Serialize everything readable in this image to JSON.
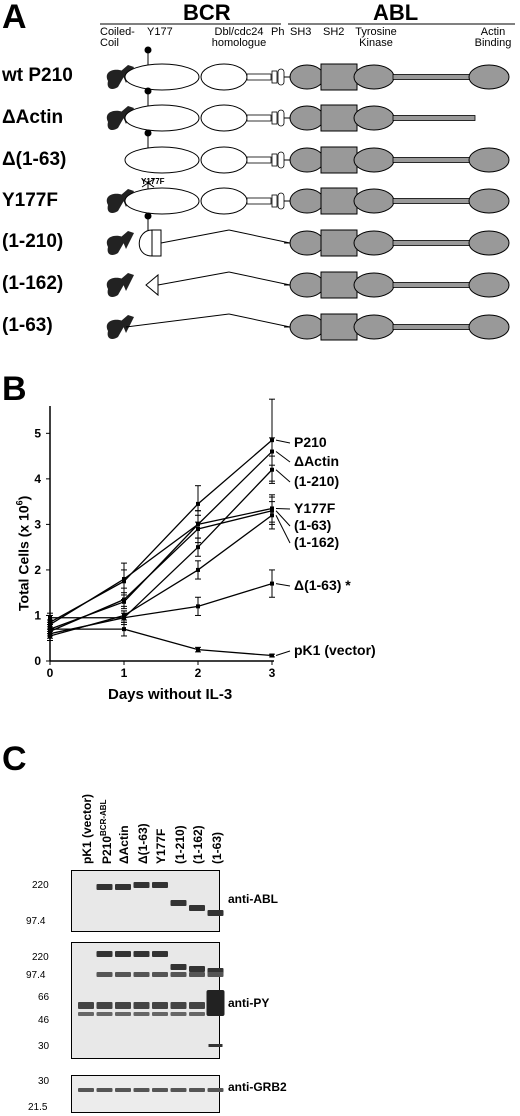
{
  "panel_a": {
    "letter": "A",
    "bcr_title": "BCR",
    "abl_title": "ABL",
    "domains": {
      "coiled_coil": "Coiled-Coil",
      "y177": "Y177",
      "dbl": "Dbl/cdc24 homologue",
      "ph": "Ph",
      "sh3": "SH3",
      "sh2": "SH2",
      "tk": "Tyrosine Kinase",
      "actin": "Actin Binding"
    },
    "mutation_tag": "Y177F",
    "constructs": [
      "wt P210",
      "ΔActin",
      "Δ(1-63)",
      "Y177F",
      "(1-210)",
      "(1-162)",
      "(1-63)"
    ]
  },
  "panel_b": {
    "letter": "B",
    "chart_data": {
      "type": "line",
      "xlabel": "Days without IL-3",
      "ylabel": "Total Cells (x 10^6)",
      "x": [
        0,
        1,
        2,
        3
      ],
      "xlim": [
        0,
        3
      ],
      "ylim": [
        0,
        5.6
      ],
      "yticks": [
        0,
        1,
        2,
        3,
        4,
        5
      ],
      "grid": false,
      "series": [
        {
          "name": "P210",
          "values": [
            0.85,
            1.75,
            3.45,
            4.85
          ],
          "err": [
            0.15,
            0.4,
            0.4,
            0.9
          ]
        },
        {
          "name": "ΔActin",
          "values": [
            0.7,
            1.3,
            3.0,
            4.6
          ],
          "err": [
            0.1,
            0.15,
            0.3,
            0.3
          ]
        },
        {
          "name": "(1-210)",
          "values": [
            0.6,
            0.95,
            2.5,
            4.2
          ],
          "err": [
            0.1,
            0.1,
            0.2,
            0.3
          ]
        },
        {
          "name": "Y177F",
          "values": [
            0.8,
            1.8,
            3.0,
            3.35
          ],
          "err": [
            0.1,
            0.2,
            0.3,
            0.3
          ]
        },
        {
          "name": "(1-63)",
          "values": [
            0.65,
            1.35,
            2.9,
            3.3
          ],
          "err": [
            0.1,
            0.15,
            0.3,
            0.3
          ]
        },
        {
          "name": "(1-162)",
          "values": [
            0.55,
            1.0,
            2.0,
            3.2
          ],
          "err": [
            0.1,
            0.1,
            0.2,
            0.3
          ]
        },
        {
          "name": "Δ(1-63) *",
          "values": [
            0.95,
            0.95,
            1.2,
            1.7
          ],
          "err": [
            0.1,
            0.15,
            0.2,
            0.3
          ]
        },
        {
          "name": "pK1 (vector)",
          "values": [
            0.7,
            0.7,
            0.25,
            0.12
          ],
          "err": [
            0.1,
            0.15,
            0.05,
            0.03
          ]
        }
      ]
    }
  },
  "panel_c": {
    "letter": "C",
    "lanes": [
      "pK1 (vector)",
      "P210",
      "ΔActin",
      "Δ(1-63)",
      "Y177F",
      "(1-210)",
      "(1-162)",
      "(1-63)"
    ],
    "lane2_sup": "BCR-ABL",
    "blot1": {
      "label": "anti-ABL",
      "markers": [
        "220",
        "97.4"
      ]
    },
    "blot2": {
      "label": "anti-PY",
      "markers": [
        "220",
        "97.4",
        "66",
        "46",
        "30"
      ]
    },
    "blot3": {
      "label": "anti-GRB2",
      "markers": [
        "30",
        "21.5"
      ]
    }
  }
}
